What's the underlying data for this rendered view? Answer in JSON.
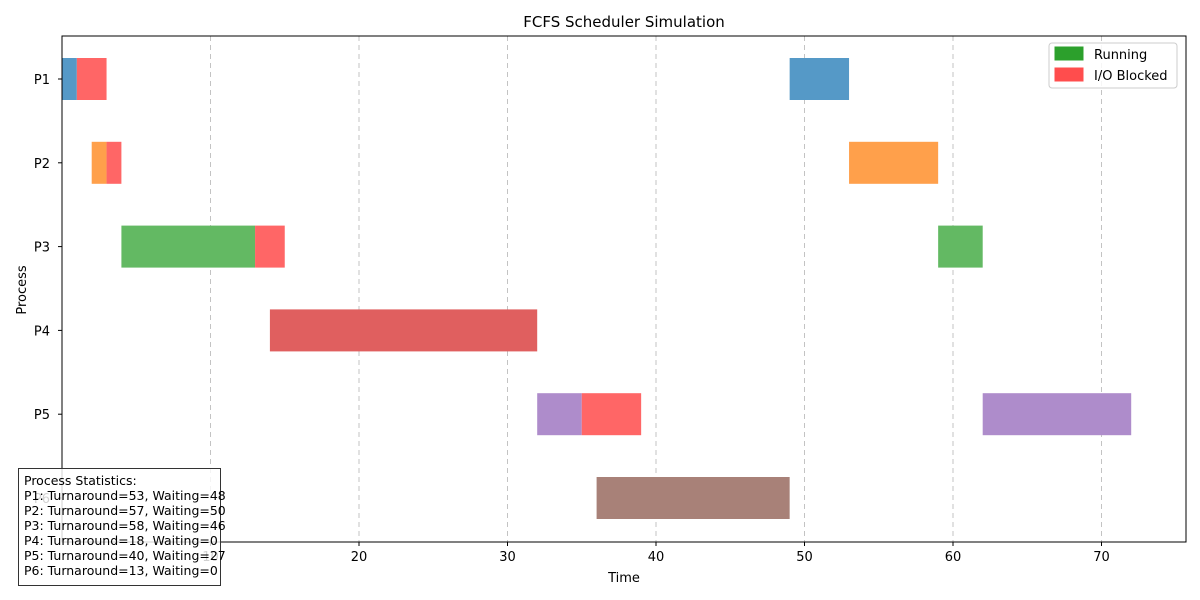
{
  "chart_data": {
    "type": "gantt",
    "title": "FCFS Scheduler Simulation",
    "xlabel": "Time",
    "ylabel": "Process",
    "xlim": [
      0,
      75.5
    ],
    "xticks": [
      10,
      20,
      30,
      40,
      50,
      60,
      70
    ],
    "grid": "x, dashed",
    "legend_position": "top-right",
    "legend": [
      {
        "label": "Running",
        "color": "#2ca02c"
      },
      {
        "label": "I/O Blocked",
        "color": "#ff4d4d"
      }
    ],
    "io_color": "#ff6666",
    "processes": [
      {
        "name": "P1",
        "color": "#5599c7",
        "segments": [
          {
            "kind": "run",
            "start": 0,
            "end": 1
          },
          {
            "kind": "io",
            "start": 1,
            "end": 3
          },
          {
            "kind": "run",
            "start": 49,
            "end": 53
          }
        ]
      },
      {
        "name": "P2",
        "color": "#ffa04b",
        "segments": [
          {
            "kind": "run",
            "start": 2,
            "end": 3
          },
          {
            "kind": "io",
            "start": 3,
            "end": 4
          },
          {
            "kind": "run",
            "start": 53,
            "end": 59
          }
        ]
      },
      {
        "name": "P3",
        "color": "#63b963",
        "segments": [
          {
            "kind": "run",
            "start": 4,
            "end": 13
          },
          {
            "kind": "io",
            "start": 13,
            "end": 15
          },
          {
            "kind": "run",
            "start": 59,
            "end": 62
          }
        ]
      },
      {
        "name": "P4",
        "color": "#e05f5f",
        "segments": [
          {
            "kind": "run",
            "start": 14,
            "end": 32
          }
        ]
      },
      {
        "name": "P5",
        "color": "#ae8ccb",
        "segments": [
          {
            "kind": "run",
            "start": 32,
            "end": 35
          },
          {
            "kind": "io",
            "start": 35,
            "end": 39
          },
          {
            "kind": "run",
            "start": 62,
            "end": 72
          }
        ]
      },
      {
        "name": "P6",
        "color": "#a88178",
        "segments": [
          {
            "kind": "run",
            "start": 36,
            "end": 49
          }
        ]
      }
    ]
  },
  "stats": {
    "title": "Process Statistics:",
    "lines": [
      "P1: Turnaround=53, Waiting=48",
      "P2: Turnaround=57, Waiting=50",
      "P3: Turnaround=58, Waiting=46",
      "P4: Turnaround=18, Waiting=0",
      "P5: Turnaround=40, Waiting=27",
      "P6: Turnaround=13, Waiting=0"
    ]
  }
}
